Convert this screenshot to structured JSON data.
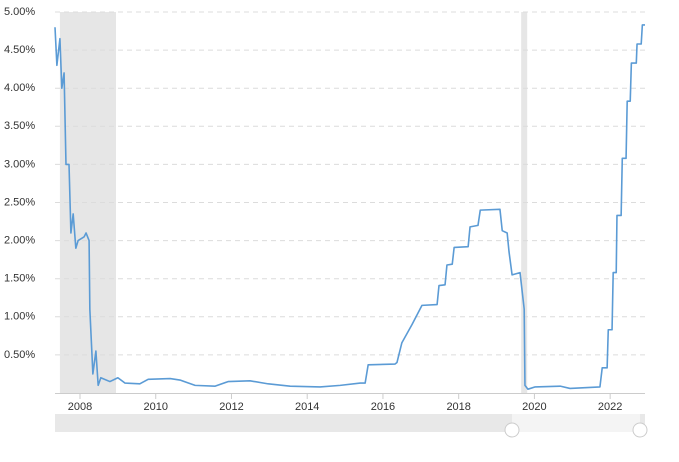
{
  "chart_data": {
    "type": "line",
    "x": [
      2007.34,
      2007.39,
      2007.47,
      2007.52,
      2007.58,
      2007.63,
      2007.71,
      2007.76,
      2007.82,
      2007.89,
      2007.95,
      2008.11,
      2008.16,
      2008.24,
      2008.26,
      2008.34,
      2008.42,
      2008.48,
      2008.55,
      2008.79,
      2009.0,
      2009.19,
      2009.58,
      2009.8,
      2010.38,
      2010.64,
      2011.04,
      2011.57,
      2011.91,
      2012.49,
      2012.97,
      2013.55,
      2014.34,
      2014.87,
      2015.4,
      2015.53,
      2015.61,
      2016.32,
      2016.37,
      2016.5,
      2016.77,
      2017.03,
      2017.43,
      2017.48,
      2017.64,
      2017.69,
      2017.83,
      2017.88,
      2018.25,
      2018.3,
      2018.51,
      2018.57,
      2019.09,
      2019.15,
      2019.28,
      2019.33,
      2019.41,
      2019.62,
      2019.73,
      2019.75,
      2019.83,
      2020.02,
      2020.68,
      2020.94,
      2021.73,
      2021.79,
      2021.92,
      2021.95,
      2022.05,
      2022.08,
      2022.16,
      2022.18,
      2022.29,
      2022.32,
      2022.42,
      2022.45,
      2022.53,
      2022.56,
      2022.69,
      2022.71,
      2022.82,
      2022.85,
      2022.92
    ],
    "series": [
      {
        "color": "#5b9bd5",
        "values": [
          4.8,
          4.3,
          4.65,
          4.0,
          4.2,
          3.0,
          3.0,
          2.1,
          2.35,
          1.9,
          2.0,
          2.05,
          2.1,
          2.0,
          1.1,
          0.25,
          0.55,
          0.1,
          0.2,
          0.15,
          0.2,
          0.13,
          0.12,
          0.18,
          0.19,
          0.17,
          0.1,
          0.09,
          0.15,
          0.16,
          0.12,
          0.09,
          0.08,
          0.1,
          0.13,
          0.13,
          0.37,
          0.38,
          0.4,
          0.66,
          0.9,
          1.15,
          1.16,
          1.41,
          1.42,
          1.68,
          1.69,
          1.91,
          1.92,
          2.18,
          2.2,
          2.4,
          2.41,
          2.13,
          2.1,
          1.85,
          1.55,
          1.58,
          1.1,
          0.1,
          0.05,
          0.08,
          0.09,
          0.06,
          0.08,
          0.33,
          0.33,
          0.83,
          0.83,
          1.58,
          1.58,
          2.33,
          2.33,
          3.08,
          3.08,
          3.83,
          3.83,
          4.33,
          4.33,
          4.58,
          4.58,
          4.83,
          4.83
        ]
      }
    ],
    "recessions": [
      [
        2007.47,
        2008.95
      ],
      [
        2019.65,
        2019.81
      ]
    ],
    "recession_color": "#e6e6e6",
    "xlim": [
      2007.34,
      2022.92
    ],
    "xticks": [
      2008,
      2010,
      2012,
      2014,
      2016,
      2018,
      2020,
      2022
    ],
    "ylim": [
      0,
      5
    ],
    "yticks": [
      {
        "value": 0.5,
        "label": "0.50%"
      },
      {
        "value": 1,
        "label": "1.00%"
      },
      {
        "value": 1.5,
        "label": "1.50%"
      },
      {
        "value": 2,
        "label": "2.00%"
      },
      {
        "value": 2.5,
        "label": "2.50%"
      },
      {
        "value": 3,
        "label": "3.00%"
      },
      {
        "value": 3.5,
        "label": "3.50%"
      },
      {
        "value": 4,
        "label": "4.00%"
      },
      {
        "value": 4.5,
        "label": "4.50%"
      },
      {
        "value": 5,
        "label": "5.00%"
      }
    ],
    "grid": true
  }
}
